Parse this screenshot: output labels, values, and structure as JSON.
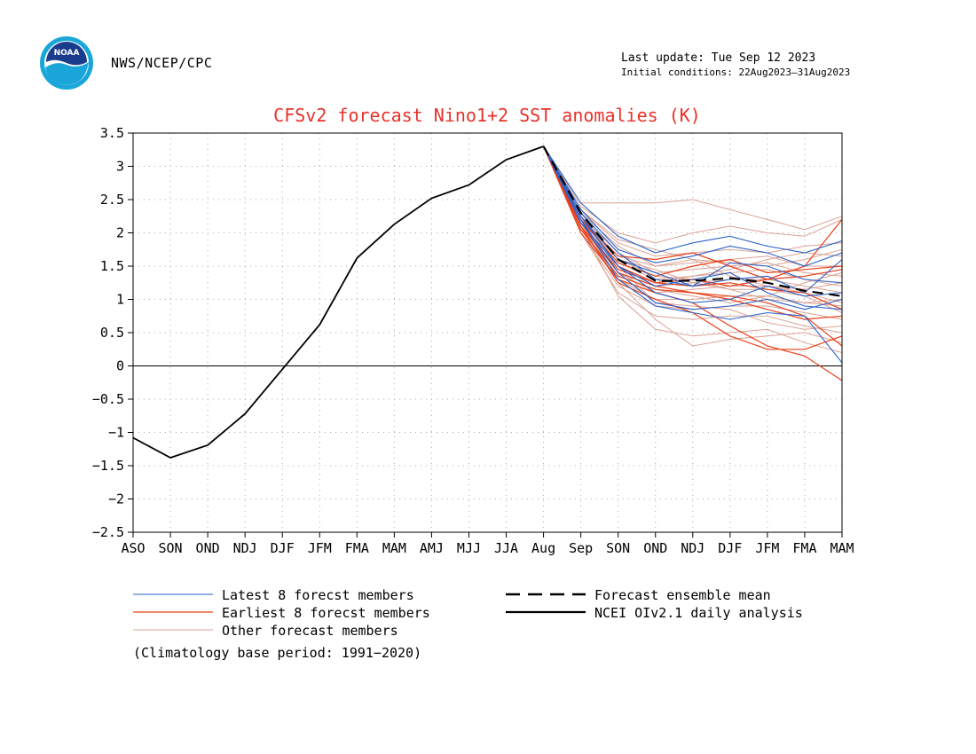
{
  "header": {
    "agency": "NWS/NCEP/CPC",
    "last_update": "Last update: Tue Sep 12 2023",
    "initial_conditions": "Initial conditions: 22Aug2023–31Aug2023",
    "logo_text": "NOAA"
  },
  "colors": {
    "title": "#e8322a",
    "latest": "#2a62c9",
    "earliest": "#e8401a",
    "other": "#d9a293",
    "analysis": "#000000",
    "mean": "#000000"
  },
  "chart_data": {
    "type": "line",
    "title": "CFSv2 forecast Nino1+2 SST anomalies (K)",
    "categories": [
      "ASO",
      "SON",
      "OND",
      "NDJ",
      "DJF",
      "JFM",
      "FMA",
      "MAM",
      "AMJ",
      "MJJ",
      "JJA",
      "Aug",
      "Sep",
      "SON",
      "OND",
      "NDJ",
      "DJF",
      "JFM",
      "FMA",
      "MAM"
    ],
    "ylim": [
      -2.5,
      3.5
    ],
    "yticks": [
      "3.5",
      "3",
      "2.5",
      "2",
      "1.5",
      "1",
      "0.5",
      "0",
      "-0.5",
      "-1",
      "-1.5",
      "-2",
      "-2.5"
    ],
    "grid": true,
    "zero_line": true,
    "legend": [
      {
        "label": "Latest 8 forecst members",
        "style": "latest"
      },
      {
        "label": "Earliest 8 forecst members",
        "style": "earliest"
      },
      {
        "label": "Other forecast members",
        "style": "other"
      },
      {
        "label": "Forecast ensemble mean",
        "style": "mean"
      },
      {
        "label": "NCEI OIv2.1 daily analysis",
        "style": "analysis"
      }
    ],
    "note": "(Climatology base period: 1991−2020)",
    "series": [
      {
        "name": "NCEI OIv2.1 daily analysis",
        "x": [
          0,
          1,
          2,
          3,
          4,
          5,
          6,
          7,
          8,
          9,
          10,
          11
        ],
        "values": [
          -1.08,
          -1.38,
          -1.19,
          -0.72,
          -0.05,
          0.62,
          1.62,
          2.13,
          2.52,
          2.72,
          3.1,
          3.3
        ]
      },
      {
        "name": "Forecast ensemble mean",
        "x": [
          11,
          12,
          13,
          14,
          15,
          16,
          17,
          18,
          19
        ],
        "values": [
          3.3,
          2.3,
          1.6,
          1.28,
          1.28,
          1.32,
          1.25,
          1.13,
          1.05
        ]
      },
      {
        "name": "Latest 8 forecst members",
        "x": [
          11,
          12,
          13,
          14,
          15,
          16,
          17,
          18,
          19
        ],
        "members": [
          [
            3.3,
            2.45,
            1.95,
            1.7,
            1.85,
            1.95,
            1.8,
            1.7,
            1.88
          ],
          [
            3.3,
            2.35,
            1.75,
            1.55,
            1.65,
            1.8,
            1.7,
            1.5,
            1.7
          ],
          [
            3.3,
            2.3,
            1.7,
            1.3,
            1.2,
            1.55,
            1.5,
            1.3,
            1.25
          ],
          [
            3.3,
            2.25,
            1.5,
            1.1,
            0.95,
            1.0,
            1.2,
            1.05,
            1.1
          ],
          [
            3.3,
            2.2,
            1.4,
            0.95,
            0.85,
            0.9,
            1.0,
            0.85,
            1.0
          ],
          [
            3.3,
            2.2,
            1.3,
            0.9,
            0.8,
            0.7,
            0.8,
            0.75,
            0.05
          ],
          [
            3.3,
            2.15,
            1.5,
            1.2,
            1.3,
            1.4,
            1.1,
            0.9,
            0.85
          ],
          [
            3.3,
            2.25,
            1.6,
            1.4,
            1.2,
            1.3,
            1.35,
            1.1,
            1.6
          ]
        ]
      },
      {
        "name": "Earliest 8 forecst members",
        "x": [
          11,
          12,
          13,
          14,
          15,
          16,
          17,
          18,
          19
        ],
        "members": [
          [
            3.3,
            2.2,
            1.55,
            1.35,
            1.5,
            1.6,
            1.4,
            1.45,
            1.5
          ],
          [
            3.3,
            2.1,
            1.45,
            1.25,
            1.3,
            1.2,
            1.3,
            1.5,
            2.2
          ],
          [
            3.3,
            2.05,
            1.35,
            1.15,
            1.1,
            1.05,
            0.95,
            0.75,
            0.3
          ],
          [
            3.3,
            2.0,
            1.3,
            1.1,
            0.95,
            0.6,
            0.3,
            0.15,
            -0.22
          ],
          [
            3.3,
            2.1,
            1.25,
            1.0,
            0.8,
            0.45,
            0.25,
            0.25,
            0.45
          ],
          [
            3.3,
            2.25,
            1.5,
            1.25,
            1.2,
            1.25,
            1.15,
            1.1,
            0.85
          ],
          [
            3.3,
            2.2,
            1.65,
            1.6,
            1.7,
            1.5,
            1.3,
            1.35,
            1.45
          ],
          [
            3.3,
            2.15,
            1.4,
            1.2,
            1.1,
            1.0,
            0.85,
            0.7,
            0.75
          ]
        ]
      },
      {
        "name": "Other forecast members",
        "x": [
          11,
          12,
          13,
          14,
          15,
          16,
          17,
          18,
          19
        ],
        "members": [
          [
            3.3,
            2.45,
            2.45,
            2.45,
            2.5,
            2.35,
            2.2,
            2.05,
            2.25
          ],
          [
            3.3,
            2.4,
            2.0,
            1.85,
            2.0,
            2.1,
            2.0,
            1.95,
            2.2
          ],
          [
            3.3,
            2.35,
            1.85,
            1.65,
            1.7,
            1.75,
            1.7,
            1.8,
            1.85
          ],
          [
            3.3,
            2.3,
            1.8,
            1.5,
            1.55,
            1.6,
            1.65,
            1.5,
            1.5
          ],
          [
            3.3,
            2.25,
            1.7,
            1.4,
            1.45,
            1.5,
            1.55,
            1.4,
            1.35
          ],
          [
            3.3,
            2.2,
            1.55,
            1.3,
            1.35,
            1.4,
            1.45,
            1.3,
            1.2
          ],
          [
            3.3,
            2.15,
            1.5,
            1.2,
            1.25,
            1.3,
            1.3,
            1.2,
            1.1
          ],
          [
            3.3,
            2.1,
            1.4,
            1.1,
            1.15,
            1.2,
            1.2,
            1.1,
            0.95
          ],
          [
            3.3,
            2.05,
            1.3,
            1.0,
            1.0,
            1.05,
            1.05,
            0.95,
            0.9
          ],
          [
            3.3,
            2.0,
            1.2,
            0.9,
            0.85,
            0.9,
            0.9,
            0.8,
            0.7
          ],
          [
            3.3,
            2.0,
            1.1,
            0.75,
            0.7,
            0.75,
            0.75,
            0.6,
            0.5
          ],
          [
            3.3,
            2.1,
            1.05,
            0.55,
            0.45,
            0.5,
            0.55,
            0.35,
            0.2
          ],
          [
            3.3,
            2.2,
            1.25,
            0.7,
            0.3,
            0.4,
            0.45,
            0.5,
            0.35
          ],
          [
            3.3,
            2.3,
            1.6,
            1.35,
            1.3,
            1.15,
            1.0,
            0.95,
            1.0
          ],
          [
            3.3,
            2.25,
            1.45,
            1.25,
            1.35,
            1.45,
            1.6,
            1.7,
            1.65
          ],
          [
            3.3,
            2.15,
            1.65,
            1.5,
            1.6,
            1.35,
            1.2,
            1.15,
            1.25
          ],
          [
            3.3,
            2.1,
            1.35,
            1.15,
            1.05,
            0.95,
            1.05,
            1.25,
            1.4
          ],
          [
            3.3,
            2.35,
            1.9,
            1.75,
            1.6,
            1.55,
            1.5,
            1.6,
            1.75
          ],
          [
            3.3,
            2.2,
            1.6,
            1.45,
            1.25,
            1.15,
            1.15,
            1.05,
            0.8
          ],
          [
            3.3,
            2.05,
            1.5,
            0.95,
            0.9,
            0.85,
            0.65,
            0.55,
            0.6
          ]
        ]
      }
    ]
  }
}
